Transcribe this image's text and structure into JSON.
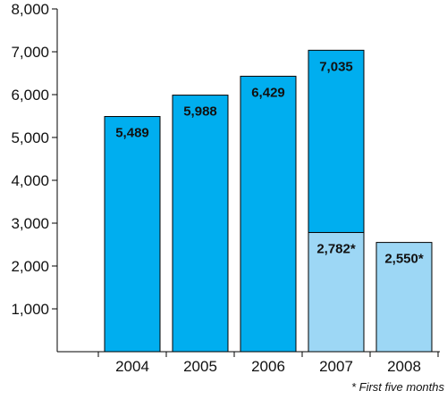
{
  "chart_data": {
    "type": "bar",
    "categories": [
      "2004",
      "2005",
      "2006",
      "2007",
      "2008"
    ],
    "series": [
      {
        "values": [
          5489,
          5988,
          6429,
          7035,
          null
        ],
        "labels": [
          "5,489",
          "5,988",
          "6,429",
          "7,035",
          ""
        ],
        "color": "#00AEEF"
      },
      {
        "values": [
          null,
          null,
          null,
          2782,
          2550
        ],
        "labels": [
          "",
          "",
          "",
          "2,782*",
          "2,550*"
        ],
        "color": "#9DD7F5"
      }
    ],
    "ylim": [
      0,
      8000
    ],
    "yticks": [
      1000,
      2000,
      3000,
      4000,
      5000,
      6000,
      7000,
      8000
    ],
    "ytick_labels": [
      "1,000",
      "2,000",
      "3,000",
      "4,000",
      "5,000",
      "6,000",
      "7,000",
      "8,000"
    ],
    "grid": false,
    "title": "",
    "xlabel": "",
    "ylabel": "",
    "footnote": "* First five months"
  }
}
